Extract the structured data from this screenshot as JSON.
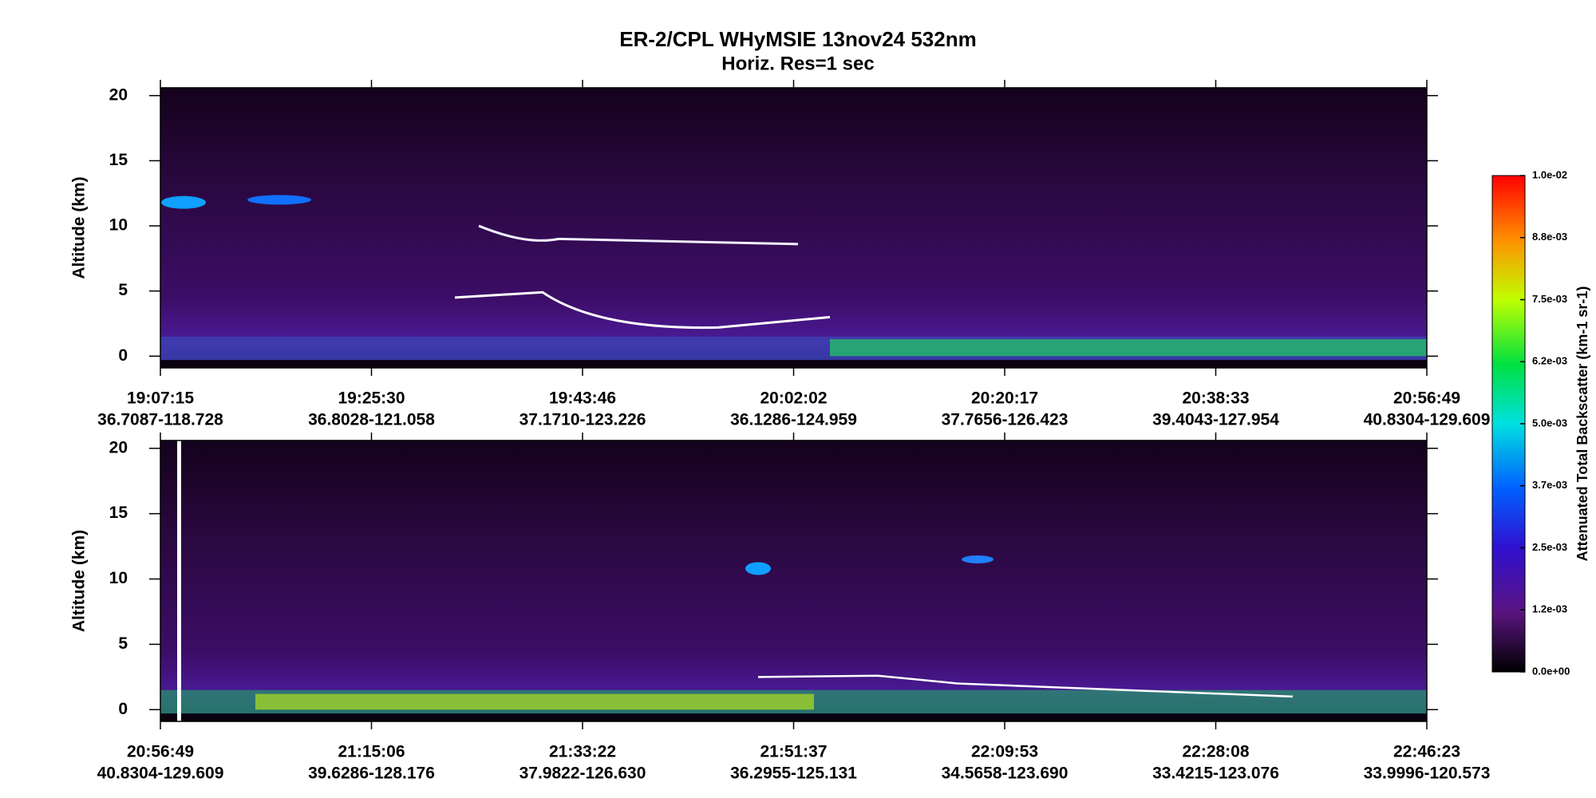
{
  "chart_data": [
    {
      "type": "heatmap",
      "title": "ER-2/CPL  WHyMSIE  13nov24  532nm",
      "subtitle": "Horiz. Res=1 sec",
      "ylabel": "Altitude (km)",
      "ylim": [
        -0.9,
        20.6
      ],
      "yticks": [
        0,
        5,
        10,
        15,
        20
      ],
      "xticks": [
        {
          "time": "19:07:15",
          "location": "36.7087-118.728"
        },
        {
          "time": "19:25:30",
          "location": "36.8028-121.058"
        },
        {
          "time": "19:43:46",
          "location": "37.1710-123.226"
        },
        {
          "time": "20:02:02",
          "location": "36.1286-124.959"
        },
        {
          "time": "20:20:17",
          "location": "37.7656-126.423"
        },
        {
          "time": "20:38:33",
          "location": "39.4043-127.954"
        },
        {
          "time": "20:56:49",
          "location": "40.8304-129.609"
        }
      ]
    },
    {
      "type": "heatmap",
      "ylabel": "Altitude (km)",
      "ylim": [
        -0.9,
        20.6
      ],
      "yticks": [
        0,
        5,
        10,
        15,
        20
      ],
      "xticks": [
        {
          "time": "20:56:49",
          "location": "40.8304-129.609"
        },
        {
          "time": "21:15:06",
          "location": "39.6286-128.176"
        },
        {
          "time": "21:33:22",
          "location": "37.9822-126.630"
        },
        {
          "time": "21:51:37",
          "location": "36.2955-125.131"
        },
        {
          "time": "22:09:53",
          "location": "34.5658-123.690"
        },
        {
          "time": "22:28:08",
          "location": "33.4215-123.076"
        },
        {
          "time": "22:46:23",
          "location": "33.9996-120.573"
        }
      ]
    }
  ],
  "colorbar": {
    "label": "Attenuated Total Backscatter (km-1 sr-1)",
    "lim": [
      0,
      0.01
    ],
    "ticks": [
      {
        "value": 0,
        "label": "0.0e+00"
      },
      {
        "value": 0.00125,
        "label": "1.2e-03"
      },
      {
        "value": 0.0025,
        "label": "2.5e-03"
      },
      {
        "value": 0.00375,
        "label": "3.7e-03"
      },
      {
        "value": 0.005,
        "label": "5.0e-03"
      },
      {
        "value": 0.00625,
        "label": "6.2e-03"
      },
      {
        "value": 0.0075,
        "label": "7.5e-03"
      },
      {
        "value": 0.00875,
        "label": "8.8e-03"
      },
      {
        "value": 0.01,
        "label": "1.0e-02"
      }
    ]
  }
}
